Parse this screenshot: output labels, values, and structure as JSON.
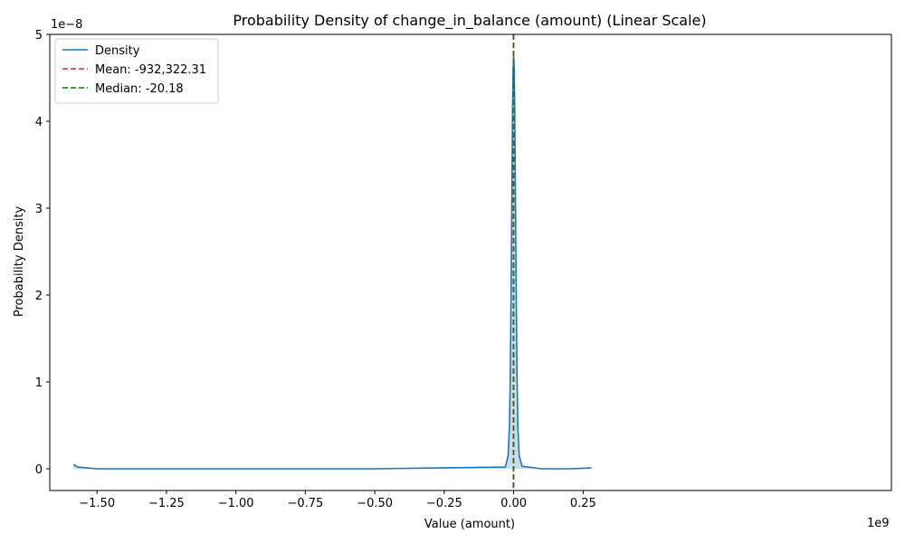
{
  "chart_data": {
    "type": "line",
    "title": "Probability Density of change_in_balance (amount) (Linear Scale)",
    "xlabel": "Value (amount)",
    "ylabel": "Probability Density",
    "x_offset_label": "1e9",
    "y_offset_label": "1e−8",
    "xlim": [
      -1.67,
      1.36
    ],
    "ylim": [
      -0.25,
      5.0
    ],
    "x_ticks": [
      -1.5,
      -1.25,
      -1.0,
      -0.75,
      -0.5,
      -0.25,
      0.0,
      0.25
    ],
    "x_tick_labels": [
      "−1.50",
      "−1.25",
      "−1.00",
      "−0.75",
      "−0.50",
      "−0.25",
      "0.00",
      "0.25"
    ],
    "y_ticks": [
      0,
      1,
      2,
      3,
      4,
      5
    ],
    "y_tick_labels": [
      "0",
      "1",
      "2",
      "3",
      "4",
      "5"
    ],
    "grid": false,
    "legend_position": "top-left",
    "series": [
      {
        "name": "Density",
        "color": "#1f77b4",
        "style": "solid",
        "fill": true,
        "x": [
          -1.585,
          -1.57,
          -1.5,
          -1.0,
          -0.5,
          -0.03,
          -0.02,
          -0.015,
          -0.012,
          -0.009,
          -0.006,
          -0.004,
          -0.002,
          0.0,
          0.002,
          0.004,
          0.006,
          0.009,
          0.012,
          0.015,
          0.02,
          0.03,
          0.1,
          0.2,
          0.28
        ],
        "y": [
          0.05,
          0.02,
          0.0,
          0.0,
          0.0,
          0.02,
          0.15,
          0.5,
          1.1,
          2.1,
          3.3,
          4.1,
          4.6,
          4.75,
          4.6,
          4.1,
          3.3,
          2.1,
          1.1,
          0.5,
          0.15,
          0.03,
          0.0,
          0.0,
          0.01
        ]
      },
      {
        "name": "Mean: -932,322.31",
        "color": "#d62728",
        "style": "dashed",
        "vline_x": -0.000932
      },
      {
        "name": "Median: -20.18",
        "color": "#008000",
        "style": "dashed",
        "vline_x": 0.0
      }
    ]
  }
}
